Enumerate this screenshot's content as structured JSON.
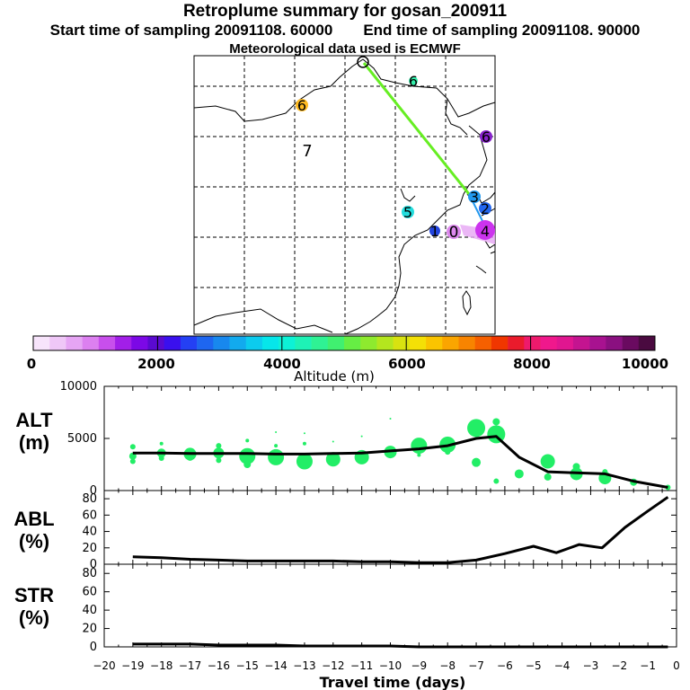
{
  "header": {
    "title": "Retroplume summary for gosan_200911",
    "start_label": "Start time of sampling 20091108. 60000",
    "end_label": "End time of sampling 20091108. 90000",
    "met_label": "Meteorological data used is ECMWF"
  },
  "map": {
    "trajectory_color": "#66ee22",
    "markers": [
      {
        "label": "6",
        "color": "#33eeaa"
      },
      {
        "label": "6",
        "color": "#ffbb22"
      },
      {
        "label": "7",
        "color": ""
      },
      {
        "label": "6",
        "color": "#8822cc"
      },
      {
        "label": "5",
        "color": "#22dddd"
      },
      {
        "label": "3",
        "color": "#2299ee"
      },
      {
        "label": "2",
        "color": "#2266ee"
      },
      {
        "label": "1",
        "color": "#2244dd"
      },
      {
        "label": "0",
        "color": "#dd88ee"
      },
      {
        "label": "4",
        "color": "#cc33ee"
      }
    ]
  },
  "colorbar": {
    "ticks": [
      "0",
      "2000",
      "4000",
      "6000",
      "8000",
      "10000"
    ],
    "label": "Altitude  (m)",
    "colors": [
      "#f7e4fb",
      "#efc7f7",
      "#e6a5f4",
      "#dc80f0",
      "#c84fec",
      "#a21fe8",
      "#7c08e6",
      "#5a0ad0",
      "#3a10ee",
      "#2440f4",
      "#1e66f0",
      "#1888ee",
      "#12aaee",
      "#0ccbee",
      "#06e6ea",
      "#0df2d6",
      "#1ef2b6",
      "#2ff294",
      "#40f070",
      "#66ee44",
      "#8eea2e",
      "#b4e61e",
      "#d8e210",
      "#f4e006",
      "#fac400",
      "#faa500",
      "#f88400",
      "#f66000",
      "#f03600",
      "#ea1b2c",
      "#ee1a6c",
      "#f0188c",
      "#e01690",
      "#c41490",
      "#a81290",
      "#8a1080",
      "#6a0a60",
      "#4a0a40"
    ]
  },
  "chart_data": [
    {
      "type": "line",
      "panel": "ALT",
      "ylabel": "ALT\n(m)",
      "xlabel": "Travel time (days)",
      "ylim": [
        0,
        10000
      ],
      "yticks": [
        "0",
        "5000",
        "10000"
      ],
      "xlim": [
        -20,
        0
      ],
      "xticks": [
        "−20",
        "−19",
        "−18",
        "−17",
        "−16",
        "−15",
        "−14",
        "−13",
        "−12",
        "−11",
        "−10",
        "−9",
        "−8",
        "−7",
        "−6",
        "−5",
        "−4",
        "−3",
        "−2",
        "−1",
        "0"
      ],
      "series": [
        {
          "name": "median altitude",
          "x": [
            -19,
            -18,
            -17,
            -16,
            -15,
            -14,
            -13,
            -12,
            -11,
            -10,
            -9,
            -8,
            -7,
            -6.3,
            -5.5,
            -4.5,
            -3.5,
            -2.5,
            -1.5,
            -0.3
          ],
          "values": [
            3600,
            3600,
            3550,
            3550,
            3550,
            3500,
            3500,
            3550,
            3600,
            3800,
            4000,
            4300,
            5000,
            5200,
            3200,
            1800,
            1700,
            1600,
            900,
            300
          ]
        }
      ],
      "scatter": {
        "color": "#22ee66",
        "x": [
          -19,
          -19,
          -19,
          -18,
          -18,
          -18,
          -17,
          -17,
          -16,
          -16,
          -16,
          -15,
          -15,
          -15,
          -14,
          -14,
          -14,
          -13,
          -13,
          -13,
          -12,
          -12,
          -12,
          -11,
          -11,
          -10,
          -10,
          -9,
          -9,
          -9,
          -8,
          -8,
          -8,
          -7,
          -7,
          -6.3,
          -6.3,
          -6.3,
          -5.5,
          -4.5,
          -4.5,
          -3.5,
          -3.5,
          -3.5,
          -2.5,
          -2.5,
          -1.5,
          -0.3
        ],
        "y": [
          4200,
          3300,
          2800,
          3600,
          4500,
          3100,
          3500,
          3200,
          3600,
          4300,
          2900,
          3300,
          4800,
          2500,
          3200,
          4300,
          5600,
          2800,
          4500,
          5500,
          3000,
          3400,
          4700,
          3200,
          5200,
          3700,
          6900,
          4300,
          3400,
          4000,
          4400,
          3700,
          5100,
          6000,
          2700,
          5400,
          6600,
          900,
          1600,
          2800,
          1300,
          1600,
          2300,
          1400,
          1200,
          1800,
          800,
          300
        ],
        "r": [
          3,
          4,
          3,
          5,
          2,
          3,
          7,
          4,
          6,
          3,
          3,
          9,
          2,
          4,
          9,
          2,
          1,
          9,
          2,
          1,
          8,
          2,
          1,
          8,
          1,
          7,
          1,
          9,
          2,
          2,
          9,
          3,
          1,
          10,
          5,
          10,
          4,
          3,
          5,
          8,
          4,
          7,
          4,
          3,
          7,
          3,
          4,
          3
        ]
      }
    },
    {
      "type": "line",
      "panel": "ABL",
      "ylabel": "ABL\n(%)",
      "ylim": [
        0,
        90
      ],
      "yticks": [
        "0",
        "20",
        "40",
        "60",
        "80"
      ],
      "series": [
        {
          "name": "ABL fraction",
          "x": [
            -19,
            -18,
            -17,
            -16,
            -15,
            -14,
            -13,
            -12,
            -11,
            -10,
            -9,
            -8,
            -7,
            -6,
            -5,
            -4.2,
            -3.4,
            -2.6,
            -1.8,
            -1,
            -0.3
          ],
          "values": [
            9,
            8,
            6,
            5,
            4,
            4,
            4,
            4,
            3,
            3,
            2,
            2,
            5,
            13,
            22,
            14,
            24,
            20,
            45,
            65,
            82
          ]
        }
      ]
    },
    {
      "type": "line",
      "panel": "STR",
      "ylabel": "STR\n(%)",
      "ylim": [
        0,
        90
      ],
      "yticks": [
        "0",
        "20",
        "40",
        "60",
        "80"
      ],
      "series": [
        {
          "name": "stratospheric fraction",
          "x": [
            -19,
            -18,
            -17,
            -16,
            -15,
            -14,
            -13,
            -12,
            -11,
            -10,
            -9,
            -8,
            -7,
            -6,
            -5,
            -4,
            -3,
            -2,
            -1,
            -0.3
          ],
          "values": [
            3,
            3,
            3,
            2,
            2,
            2,
            1,
            1,
            1,
            1,
            0,
            0,
            0,
            0,
            0,
            0,
            0,
            0,
            0,
            0
          ]
        }
      ]
    }
  ]
}
